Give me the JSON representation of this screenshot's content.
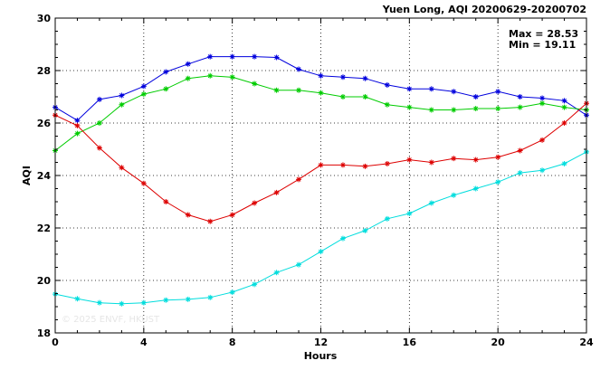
{
  "chart_data": {
    "type": "line",
    "title": "Yuen Long, AQI 20200629-20200702",
    "xlabel": "Hours",
    "ylabel": "AQI",
    "xlim": [
      0,
      24
    ],
    "ylim": [
      18,
      30
    ],
    "x_ticks": [
      0,
      4,
      8,
      12,
      16,
      20,
      24
    ],
    "y_ticks": [
      18,
      20,
      22,
      24,
      26,
      28,
      30
    ],
    "grid": "dotted",
    "x": [
      0,
      1,
      2,
      3,
      4,
      5,
      6,
      7,
      8,
      9,
      10,
      11,
      12,
      13,
      14,
      15,
      16,
      17,
      18,
      19,
      20,
      21,
      22,
      23,
      24
    ],
    "series": [
      {
        "color": "#0000dd",
        "values": [
          26.6,
          26.1,
          26.9,
          27.05,
          27.4,
          27.95,
          28.25,
          28.53,
          28.53,
          28.53,
          28.5,
          28.05,
          27.8,
          27.75,
          27.7,
          27.45,
          27.3,
          27.3,
          27.2,
          27.0,
          27.2,
          27.0,
          26.95,
          26.85,
          26.3
        ]
      },
      {
        "color": "#00cc00",
        "values": [
          24.95,
          25.6,
          26.0,
          26.7,
          27.1,
          27.3,
          27.7,
          27.8,
          27.75,
          27.5,
          27.25,
          27.25,
          27.15,
          27.0,
          27.0,
          26.7,
          26.6,
          26.5,
          26.5,
          26.55,
          26.55,
          26.6,
          26.75,
          26.6,
          26.5
        ]
      },
      {
        "color": "#dd0000",
        "values": [
          26.3,
          25.9,
          25.05,
          24.3,
          23.7,
          23.0,
          22.5,
          22.25,
          22.5,
          22.95,
          23.35,
          23.85,
          24.4,
          24.4,
          24.35,
          24.45,
          24.6,
          24.5,
          24.65,
          24.6,
          24.7,
          24.95,
          25.35,
          26.0,
          26.75
        ]
      },
      {
        "color": "#00dddd",
        "values": [
          19.48,
          19.3,
          19.15,
          19.11,
          19.15,
          19.25,
          19.28,
          19.35,
          19.55,
          19.85,
          20.3,
          20.6,
          21.1,
          21.6,
          21.9,
          22.35,
          22.55,
          22.95,
          23.25,
          23.5,
          23.75,
          24.1,
          24.2,
          24.45,
          24.9
        ]
      }
    ],
    "annotations": {
      "max": "Max = 28.53",
      "min": "Min = 19.11"
    },
    "watermark": "© 2025  ENVF, HKUST"
  }
}
